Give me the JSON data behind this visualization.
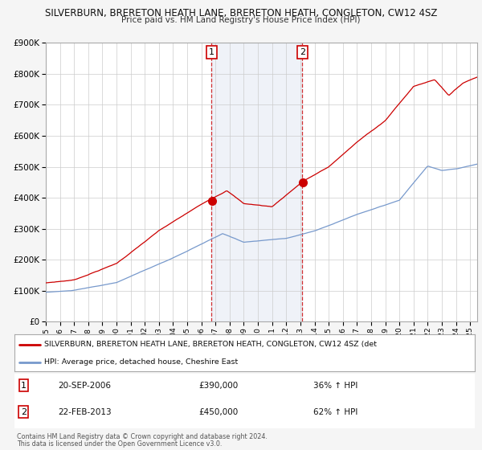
{
  "title1": "SILVERBURN, BRERETON HEATH LANE, BRERETON HEATH, CONGLETON, CW12 4SZ",
  "title2": "Price paid vs. HM Land Registry's House Price Index (HPI)",
  "legend_red": "SILVERBURN, BRERETON HEATH LANE, BRERETON HEATH, CONGLETON, CW12 4SZ (det",
  "legend_blue": "HPI: Average price, detached house, Cheshire East",
  "annotation1_date": "20-SEP-2006",
  "annotation1_price": "£390,000",
  "annotation1_pct": "36% ↑ HPI",
  "annotation1_year": 2006.72,
  "annotation1_value": 390000,
  "annotation2_date": "22-FEB-2013",
  "annotation2_price": "£450,000",
  "annotation2_pct": "62% ↑ HPI",
  "annotation2_year": 2013.14,
  "annotation2_value": 450000,
  "footer1": "Contains HM Land Registry data © Crown copyright and database right 2024.",
  "footer2": "This data is licensed under the Open Government Licence v3.0.",
  "ylim": [
    0,
    900000
  ],
  "yticks": [
    0,
    100000,
    200000,
    300000,
    400000,
    500000,
    600000,
    700000,
    800000,
    900000
  ],
  "bg_color": "#f5f5f5",
  "plot_bg": "#ffffff",
  "red_color": "#cc0000",
  "blue_color": "#7799cc",
  "shaded_start": 2006.72,
  "shaded_end": 2013.14,
  "xmin": 1995,
  "xmax": 2025.5
}
